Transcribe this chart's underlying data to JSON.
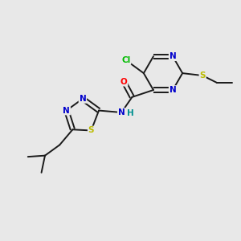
{
  "bg_color": "#e8e8e8",
  "bond_color": "#1a1a1a",
  "atom_colors": {
    "N": "#0000cc",
    "O": "#ff0000",
    "S": "#bbbb00",
    "Cl": "#00bb00",
    "C": "#1a1a1a",
    "H": "#009090"
  },
  "figsize": [
    3.0,
    3.0
  ],
  "dpi": 100,
  "bond_lw": 1.4,
  "font_size": 7.5
}
